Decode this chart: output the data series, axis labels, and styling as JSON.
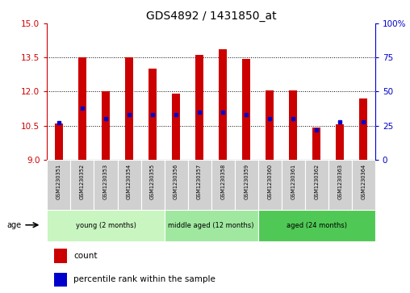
{
  "title": "GDS4892 / 1431850_at",
  "samples": [
    "GSM1230351",
    "GSM1230352",
    "GSM1230353",
    "GSM1230354",
    "GSM1230355",
    "GSM1230356",
    "GSM1230357",
    "GSM1230358",
    "GSM1230359",
    "GSM1230360",
    "GSM1230361",
    "GSM1230362",
    "GSM1230363",
    "GSM1230364"
  ],
  "counts": [
    10.6,
    13.5,
    12.0,
    13.5,
    13.0,
    11.9,
    13.6,
    13.85,
    13.45,
    12.05,
    12.05,
    10.4,
    10.55,
    11.7
  ],
  "percentile_ranks": [
    27,
    38,
    30,
    33,
    33,
    33,
    35,
    35,
    33,
    30,
    30,
    22,
    28,
    28
  ],
  "ymin": 9,
  "ymax": 15,
  "y_ticks_left": [
    9,
    10.5,
    12,
    13.5,
    15
  ],
  "y_ticks_right_vals": [
    0,
    25,
    50,
    75,
    100
  ],
  "y_ticks_right_labels": [
    "0",
    "25",
    "50",
    "75",
    "100%"
  ],
  "bar_color": "#cc0000",
  "dot_color": "#0000cc",
  "bar_width": 0.35,
  "left_tick_color": "#cc0000",
  "right_tick_color": "#0000cc",
  "group_labels": [
    "young (2 months)",
    "middle aged (12 months)",
    "aged (24 months)"
  ],
  "group_starts": [
    0,
    5,
    9
  ],
  "group_ends": [
    5,
    9,
    14
  ],
  "group_bg_colors": [
    "#c8f5c0",
    "#a0e8a0",
    "#50c855"
  ]
}
